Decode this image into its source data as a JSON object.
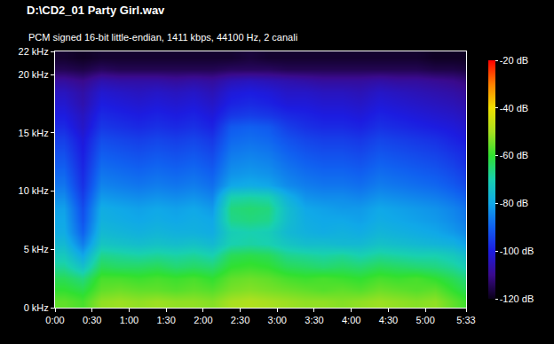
{
  "chart_data": {
    "type": "heatmap",
    "title": "D:\\CD2_01 Party Girl.wav",
    "subtitle": "PCM signed 16-bit little-endian, 1411 kbps, 44100 Hz, 2 canali",
    "x": [
      7.5,
      22.5,
      37.5,
      52.5,
      67.5,
      82.5,
      97.5,
      112.5,
      127.5,
      142.5,
      157.5,
      172.5,
      187.5,
      202.5,
      217.5,
      232.5,
      247.5,
      262.5,
      277.5,
      292.5,
      307.5,
      322.5,
      337.5
    ],
    "y": [
      0.5,
      1.5,
      2.5,
      3.5,
      4.5,
      5.5,
      6.5,
      7.5,
      8.5,
      9.5,
      10.5,
      11.5,
      12.5,
      13.5,
      14.5,
      15.5,
      16.5,
      17.5,
      18.5,
      19.5,
      20.5,
      21.5
    ],
    "z": [
      [
        -56,
        -58,
        -52,
        -51,
        -52,
        -51,
        -52,
        -52,
        -53,
        -50,
        -49,
        -50,
        -51,
        -52,
        -52,
        -53,
        -52,
        -51,
        -52,
        -53,
        -52,
        -56,
        -60
      ],
      [
        -60,
        -62,
        -56,
        -55,
        -56,
        -56,
        -57,
        -56,
        -57,
        -54,
        -53,
        -54,
        -55,
        -56,
        -57,
        -56,
        -57,
        -55,
        -56,
        -57,
        -56,
        -60,
        -64
      ],
      [
        -63,
        -66,
        -58,
        -58,
        -59,
        -58,
        -59,
        -58,
        -60,
        -56,
        -55,
        -56,
        -58,
        -59,
        -58,
        -59,
        -60,
        -58,
        -59,
        -58,
        -60,
        -63,
        -67
      ],
      [
        -68,
        -74,
        -63,
        -64,
        -64,
        -63,
        -65,
        -64,
        -65,
        -60,
        -59,
        -60,
        -63,
        -64,
        -65,
        -64,
        -65,
        -63,
        -64,
        -65,
        -66,
        -68,
        -72
      ],
      [
        -72,
        -80,
        -67,
        -68,
        -69,
        -68,
        -69,
        -68,
        -70,
        -63,
        -62,
        -63,
        -67,
        -68,
        -69,
        -68,
        -70,
        -68,
        -69,
        -70,
        -70,
        -72,
        -76
      ],
      [
        -76,
        -86,
        -73,
        -74,
        -75,
        -74,
        -75,
        -74,
        -76,
        -70,
        -69,
        -70,
        -73,
        -75,
        -75,
        -76,
        -76,
        -74,
        -75,
        -76,
        -77,
        -78,
        -82
      ],
      [
        -79,
        -90,
        -76,
        -77,
        -78,
        -77,
        -78,
        -78,
        -79,
        -71,
        -70,
        -71,
        -76,
        -78,
        -79,
        -78,
        -79,
        -77,
        -78,
        -79,
        -80,
        -82,
        -85
      ],
      [
        -80,
        -92,
        -78,
        -79,
        -80,
        -79,
        -80,
        -79,
        -80,
        -67,
        -66,
        -67,
        -75,
        -79,
        -80,
        -80,
        -81,
        -79,
        -80,
        -81,
        -82,
        -84,
        -87
      ],
      [
        -81,
        -93,
        -79,
        -80,
        -81,
        -80,
        -81,
        -80,
        -82,
        -66,
        -65,
        -66,
        -75,
        -80,
        -81,
        -82,
        -82,
        -80,
        -81,
        -82,
        -83,
        -85,
        -88
      ],
      [
        -84,
        -95,
        -82,
        -83,
        -84,
        -83,
        -84,
        -83,
        -85,
        -70,
        -69,
        -70,
        -78,
        -83,
        -84,
        -84,
        -85,
        -83,
        -84,
        -85,
        -86,
        -88,
        -91
      ],
      [
        -87,
        -97,
        -85,
        -86,
        -87,
        -86,
        -87,
        -86,
        -88,
        -80,
        -79,
        -80,
        -84,
        -86,
        -87,
        -87,
        -88,
        -86,
        -87,
        -88,
        -89,
        -91,
        -94
      ],
      [
        -89,
        -98,
        -87,
        -88,
        -89,
        -88,
        -89,
        -88,
        -90,
        -83,
        -82,
        -83,
        -86,
        -88,
        -89,
        -89,
        -90,
        -88,
        -89,
        -90,
        -91,
        -93,
        -96
      ],
      [
        -91,
        -99,
        -89,
        -90,
        -91,
        -90,
        -91,
        -90,
        -92,
        -85,
        -84,
        -85,
        -88,
        -90,
        -91,
        -91,
        -92,
        -90,
        -91,
        -92,
        -93,
        -95,
        -98
      ],
      [
        -93,
        -100,
        -91,
        -92,
        -93,
        -92,
        -93,
        -92,
        -94,
        -87,
        -86,
        -87,
        -90,
        -92,
        -93,
        -93,
        -94,
        -92,
        -93,
        -94,
        -95,
        -97,
        -99
      ],
      [
        -95,
        -101,
        -93,
        -94,
        -95,
        -94,
        -95,
        -94,
        -96,
        -89,
        -88,
        -89,
        -92,
        -94,
        -95,
        -95,
        -96,
        -94,
        -95,
        -96,
        -97,
        -99,
        -101
      ],
      [
        -98,
        -103,
        -96,
        -97,
        -98,
        -97,
        -98,
        -97,
        -99,
        -91,
        -90,
        -91,
        -95,
        -97,
        -98,
        -98,
        -99,
        -97,
        -98,
        -99,
        -100,
        -101,
        -103
      ],
      [
        -100,
        -104,
        -98,
        -99,
        -100,
        -99,
        -100,
        -99,
        -101,
        -96,
        -95,
        -96,
        -98,
        -99,
        -100,
        -100,
        -101,
        -99,
        -100,
        -101,
        -102,
        -103,
        -105
      ],
      [
        -102,
        -106,
        -100,
        -101,
        -102,
        -101,
        -102,
        -101,
        -103,
        -99,
        -98,
        -99,
        -101,
        -101,
        -102,
        -102,
        -103,
        -101,
        -102,
        -103,
        -104,
        -105,
        -107
      ],
      [
        -104,
        -107,
        -102,
        -103,
        -104,
        -103,
        -104,
        -103,
        -105,
        -101,
        -100,
        -101,
        -103,
        -103,
        -104,
        -104,
        -105,
        -103,
        -104,
        -105,
        -106,
        -107,
        -109
      ],
      [
        -108,
        -110,
        -106,
        -107,
        -107,
        -107,
        -108,
        -107,
        -108,
        -105,
        -104,
        -105,
        -106,
        -107,
        -108,
        -108,
        -108,
        -107,
        -108,
        -108,
        -109,
        -110,
        -112
      ],
      [
        -115,
        -116,
        -114,
        -115,
        -115,
        -115,
        -115,
        -115,
        -115,
        -114,
        -114,
        -114,
        -115,
        -115,
        -115,
        -115,
        -115,
        -115,
        -115,
        -115,
        -116,
        -116,
        -117
      ],
      [
        -118,
        -119,
        -118,
        -118,
        -118,
        -118,
        -118,
        -118,
        -118,
        -118,
        -117,
        -118,
        -118,
        -118,
        -118,
        -118,
        -118,
        -118,
        -118,
        -118,
        -119,
        -119,
        -119
      ]
    ],
    "xlim": [
      0,
      333
    ],
    "xticks": [
      {
        "value": 0,
        "label": "0:00"
      },
      {
        "value": 30,
        "label": "0:30"
      },
      {
        "value": 60,
        "label": "1:00"
      },
      {
        "value": 90,
        "label": "1:30"
      },
      {
        "value": 120,
        "label": "2:00"
      },
      {
        "value": 150,
        "label": "2:30"
      },
      {
        "value": 180,
        "label": "3:00"
      },
      {
        "value": 210,
        "label": "3:30"
      },
      {
        "value": 240,
        "label": "4:00"
      },
      {
        "value": 270,
        "label": "4:30"
      },
      {
        "value": 300,
        "label": "5:00"
      },
      {
        "value": 333,
        "label": "5:33"
      }
    ],
    "ylim": [
      0,
      22
    ],
    "yticks": [
      {
        "value": 0,
        "label": "0 kHz"
      },
      {
        "value": 5,
        "label": "5 kHz"
      },
      {
        "value": 10,
        "label": "10 kHz"
      },
      {
        "value": 15,
        "label": "15 kHz"
      },
      {
        "value": 20,
        "label": "20 kHz"
      },
      {
        "value": 22,
        "label": "22 kHz"
      }
    ],
    "colorbar_range": [
      -120,
      -20
    ],
    "colorbar_ticks": [
      {
        "value": -20,
        "label": "-20 dB"
      },
      {
        "value": -40,
        "label": "-40 dB"
      },
      {
        "value": -60,
        "label": "-60 dB"
      },
      {
        "value": -80,
        "label": "-80 dB"
      },
      {
        "value": -100,
        "label": "-100 dB"
      },
      {
        "value": -120,
        "label": "-120 dB"
      }
    ],
    "grid": false
  }
}
